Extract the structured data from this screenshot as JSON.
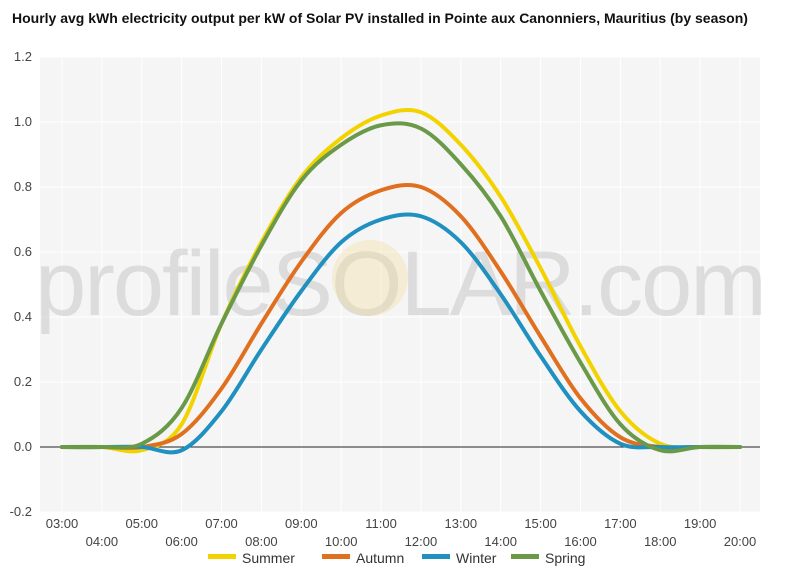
{
  "chart_data": {
    "type": "line",
    "title": "Hourly avg kWh electricity output per kW of Solar PV installed in Pointe aux Canonniers, Mauritius (by season)",
    "xlabel": "",
    "ylabel": "",
    "x": [
      "03:00",
      "04:00",
      "05:00",
      "06:00",
      "07:00",
      "08:00",
      "09:00",
      "10:00",
      "11:00",
      "12:00",
      "13:00",
      "14:00",
      "15:00",
      "16:00",
      "17:00",
      "18:00",
      "19:00",
      "20:00"
    ],
    "ylim": [
      -0.2,
      1.2
    ],
    "yticks": [
      "1.2",
      "1.0",
      "0.8",
      "0.6",
      "0.4",
      "0.2",
      "0.0",
      "-0.2"
    ],
    "grid": true,
    "legend_position": "bottom",
    "watermark": "profileSOLAR.com",
    "series": [
      {
        "name": "Summer",
        "color": "#f2d300",
        "values": [
          0,
          0,
          -0.01,
          0.07,
          0.38,
          0.63,
          0.83,
          0.95,
          1.02,
          1.03,
          0.93,
          0.77,
          0.55,
          0.31,
          0.11,
          0.01,
          0,
          0
        ]
      },
      {
        "name": "Autumn",
        "color": "#e07020",
        "values": [
          0,
          0,
          0,
          0.04,
          0.18,
          0.38,
          0.57,
          0.72,
          0.79,
          0.8,
          0.71,
          0.54,
          0.34,
          0.15,
          0.03,
          0,
          0,
          0
        ]
      },
      {
        "name": "Winter",
        "color": "#2090c0",
        "values": [
          0,
          0,
          0,
          -0.01,
          0.11,
          0.3,
          0.48,
          0.63,
          0.7,
          0.71,
          0.63,
          0.47,
          0.28,
          0.11,
          0.01,
          0,
          0,
          0
        ]
      },
      {
        "name": "Spring",
        "color": "#6a9a48",
        "values": [
          0,
          0,
          0.01,
          0.12,
          0.38,
          0.62,
          0.82,
          0.93,
          0.99,
          0.98,
          0.87,
          0.71,
          0.48,
          0.26,
          0.07,
          -0.01,
          0,
          0
        ]
      }
    ]
  }
}
